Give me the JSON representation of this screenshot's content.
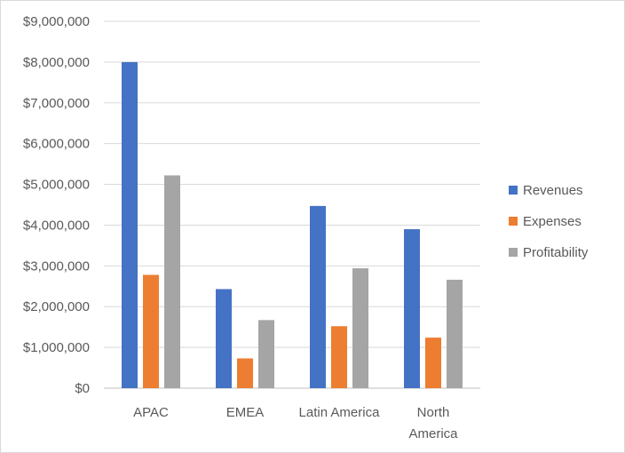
{
  "chart_data": {
    "type": "bar",
    "categories": [
      [
        "APAC"
      ],
      [
        "EMEA"
      ],
      [
        "Latin America"
      ],
      [
        "North",
        "America"
      ]
    ],
    "series": [
      {
        "name": "Revenues",
        "color": "#4472C4",
        "values": [
          8000000,
          2430000,
          4470000,
          3900000
        ]
      },
      {
        "name": "Expenses",
        "color": "#ED7D31",
        "values": [
          2780000,
          730000,
          1520000,
          1240000
        ]
      },
      {
        "name": "Profitability",
        "color": "#A5A5A5",
        "values": [
          5220000,
          1670000,
          2940000,
          2660000
        ]
      }
    ],
    "ylim": [
      0,
      9000000
    ],
    "yticks": [
      0,
      1000000,
      2000000,
      3000000,
      4000000,
      5000000,
      6000000,
      7000000,
      8000000,
      9000000
    ],
    "ytick_labels": [
      "$0",
      "$1,000,000",
      "$2,000,000",
      "$3,000,000",
      "$4,000,000",
      "$5,000,000",
      "$6,000,000",
      "$7,000,000",
      "$8,000,000",
      "$9,000,000"
    ],
    "grid": true,
    "legend_position": "right",
    "gridline_color": "#d9d9d9",
    "axis_line_color": "#bfbfbf"
  }
}
